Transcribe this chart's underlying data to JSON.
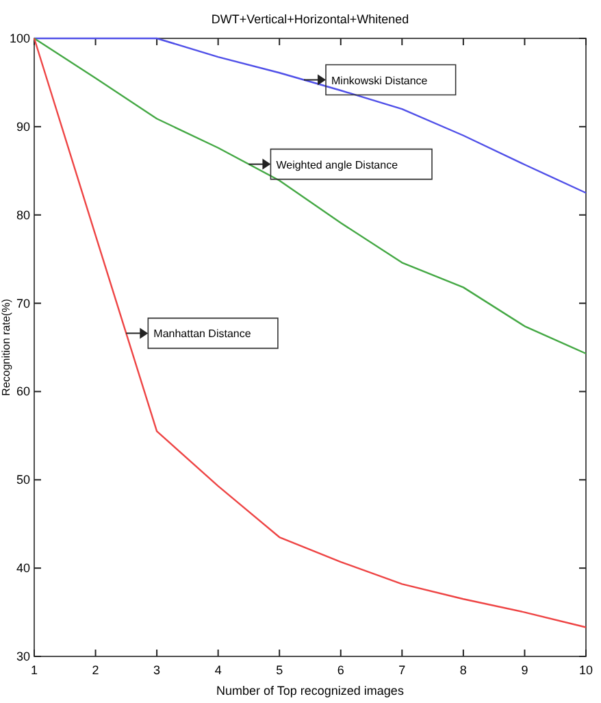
{
  "chart_data": {
    "type": "line",
    "title": "DWT+Vertical+Horizontal+Whitened",
    "xlabel": "Number of Top recognized images",
    "ylabel": "Recognition rate(%)",
    "x": [
      1,
      2,
      3,
      4,
      5,
      6,
      7,
      8,
      9,
      10
    ],
    "series": [
      {
        "name": "Minkowski Distance",
        "color": "#5050e8",
        "values": [
          100,
          100,
          100,
          97.9,
          96.1,
          94.1,
          92,
          89,
          85.7,
          82.5
        ]
      },
      {
        "name": "Weighted angle Distance",
        "color": "#44a844",
        "values": [
          100,
          95.5,
          90.9,
          87.6,
          83.9,
          79.1,
          74.6,
          71.8,
          67.4,
          64.3
        ]
      },
      {
        "name": "Manhattan Distance",
        "color": "#ee4444",
        "values": [
          100,
          77.7,
          55.5,
          49.3,
          43.5,
          40.7,
          38.2,
          36.5,
          35,
          33.3
        ]
      }
    ],
    "xlim": [
      1,
      10
    ],
    "xticks": [
      1,
      2,
      3,
      4,
      5,
      6,
      7,
      8,
      9,
      10
    ],
    "ylim": [
      30,
      100
    ],
    "yticks": [
      30,
      40,
      50,
      60,
      70,
      80,
      90,
      100
    ],
    "grid": false,
    "line_style": "solid"
  }
}
